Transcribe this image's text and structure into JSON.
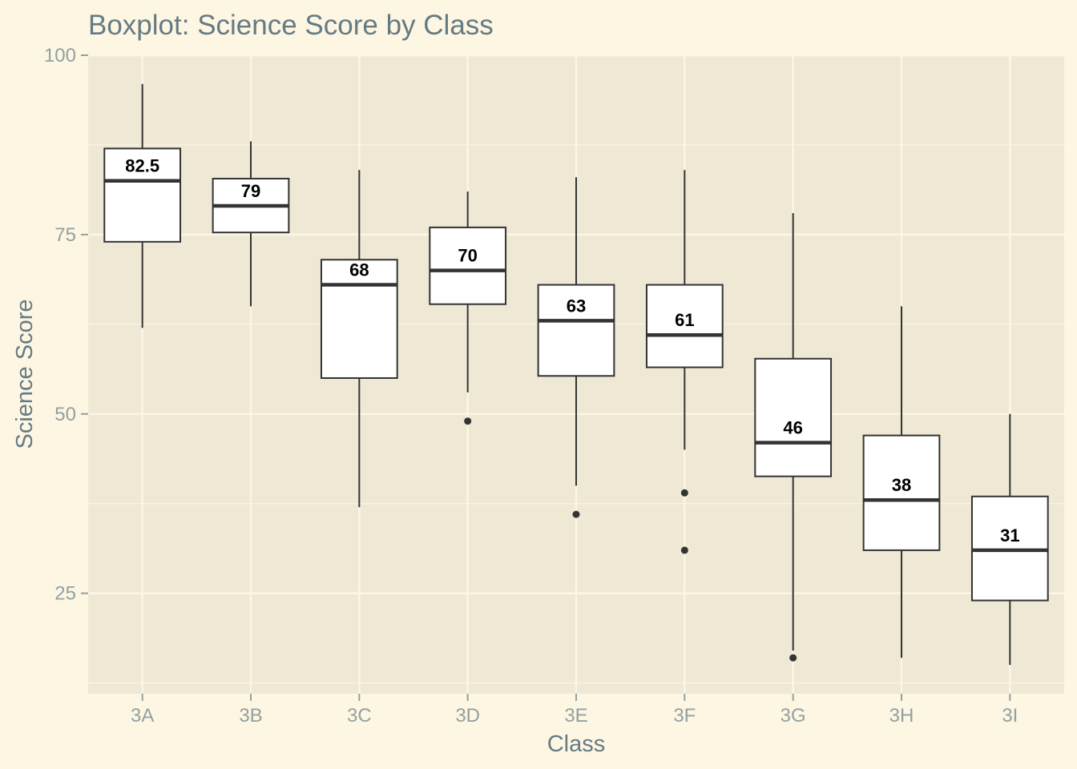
{
  "chart_data": {
    "type": "boxplot",
    "title": "Boxplot: Science Score by Class",
    "xlabel": "Class",
    "ylabel": "Science Score",
    "ylim": [
      11,
      100
    ],
    "yticks": [
      25,
      50,
      75,
      100
    ],
    "grid": true,
    "legend": "none",
    "categories": [
      "3A",
      "3B",
      "3C",
      "3D",
      "3E",
      "3F",
      "3G",
      "3H",
      "3I"
    ],
    "boxes": [
      {
        "category": "3A",
        "min": 62,
        "q1": 74,
        "median": 82.5,
        "q3": 87,
        "max": 96,
        "outliers": [],
        "label": "82.5"
      },
      {
        "category": "3B",
        "min": 65,
        "q1": 75.3,
        "median": 79,
        "q3": 82.8,
        "max": 88,
        "outliers": [],
        "label": "79"
      },
      {
        "category": "3C",
        "min": 37,
        "q1": 55,
        "median": 68,
        "q3": 71.5,
        "max": 84,
        "outliers": [],
        "label": "68"
      },
      {
        "category": "3D",
        "min": 53,
        "q1": 65.3,
        "median": 70,
        "q3": 76,
        "max": 81,
        "outliers": [
          49
        ],
        "label": "70"
      },
      {
        "category": "3E",
        "min": 40,
        "q1": 55.3,
        "median": 63,
        "q3": 68,
        "max": 83,
        "outliers": [
          36
        ],
        "label": "63"
      },
      {
        "category": "3F",
        "min": 45,
        "q1": 56.5,
        "median": 61,
        "q3": 68,
        "max": 84,
        "outliers": [
          39,
          31
        ],
        "label": "61"
      },
      {
        "category": "3G",
        "min": 17,
        "q1": 41.3,
        "median": 46,
        "q3": 57.7,
        "max": 78,
        "outliers": [
          16
        ],
        "label": "46"
      },
      {
        "category": "3H",
        "min": 16,
        "q1": 31,
        "median": 38,
        "q3": 47,
        "max": 65,
        "outliers": [],
        "label": "38"
      },
      {
        "category": "3I",
        "min": 15,
        "q1": 24,
        "median": 31,
        "q3": 38.5,
        "max": 50,
        "outliers": [],
        "label": "31"
      }
    ],
    "colors": {
      "background": "#fdf6e3",
      "panel": "#eee8d5",
      "grid": "#fdf6e3",
      "box_fill": "#ffffff",
      "box_stroke": "#333333",
      "title": "#657b83",
      "tick_label": "#93a1a1"
    }
  }
}
